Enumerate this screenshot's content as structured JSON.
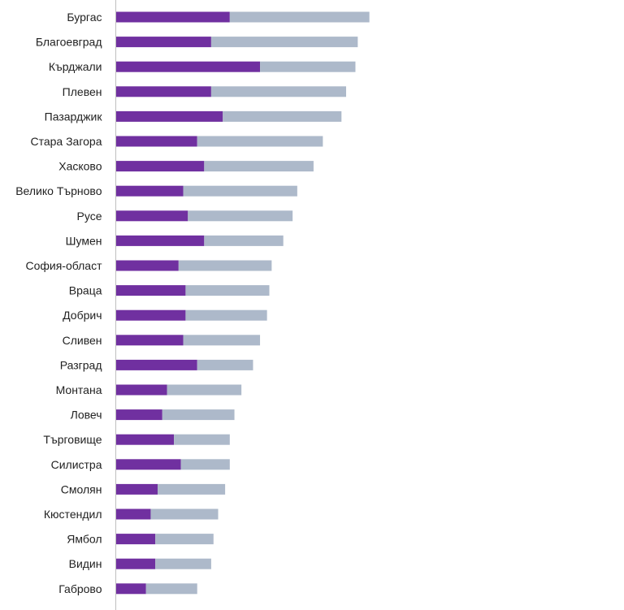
{
  "chart_data": {
    "type": "bar",
    "orientation": "horizontal",
    "stacked": true,
    "title": "",
    "xlabel": "",
    "ylabel": "",
    "grid": false,
    "legend": "none",
    "xlim": [
      0,
      110
    ],
    "categories": [
      "Бургас",
      "Благоевград",
      "Кърджали",
      "Плевен",
      "Пазарджик",
      "Стара Загора",
      "Хасково",
      "Велико Търново",
      "Русе",
      "Шумен",
      "София-област",
      "Враца",
      "Добрич",
      "Сливен",
      "Разград",
      "Монтана",
      "Ловеч",
      "Търговище",
      "Силистра",
      "Смолян",
      "Кюстендил",
      "Ямбол",
      "Видин",
      "Габрово"
    ],
    "series": [
      {
        "color": "#7030a0",
        "values": [
          49,
          41,
          62,
          41,
          46,
          35,
          38,
          29,
          31,
          38,
          27,
          30,
          30,
          29,
          35,
          22,
          20,
          25,
          28,
          18,
          15,
          17,
          17,
          13
        ]
      },
      {
        "color": "#adb9ca",
        "values": [
          60,
          63,
          41,
          58,
          51,
          54,
          47,
          49,
          45,
          34,
          40,
          36,
          35,
          33,
          24,
          32,
          31,
          24,
          21,
          29,
          29,
          25,
          24,
          22
        ]
      }
    ]
  }
}
